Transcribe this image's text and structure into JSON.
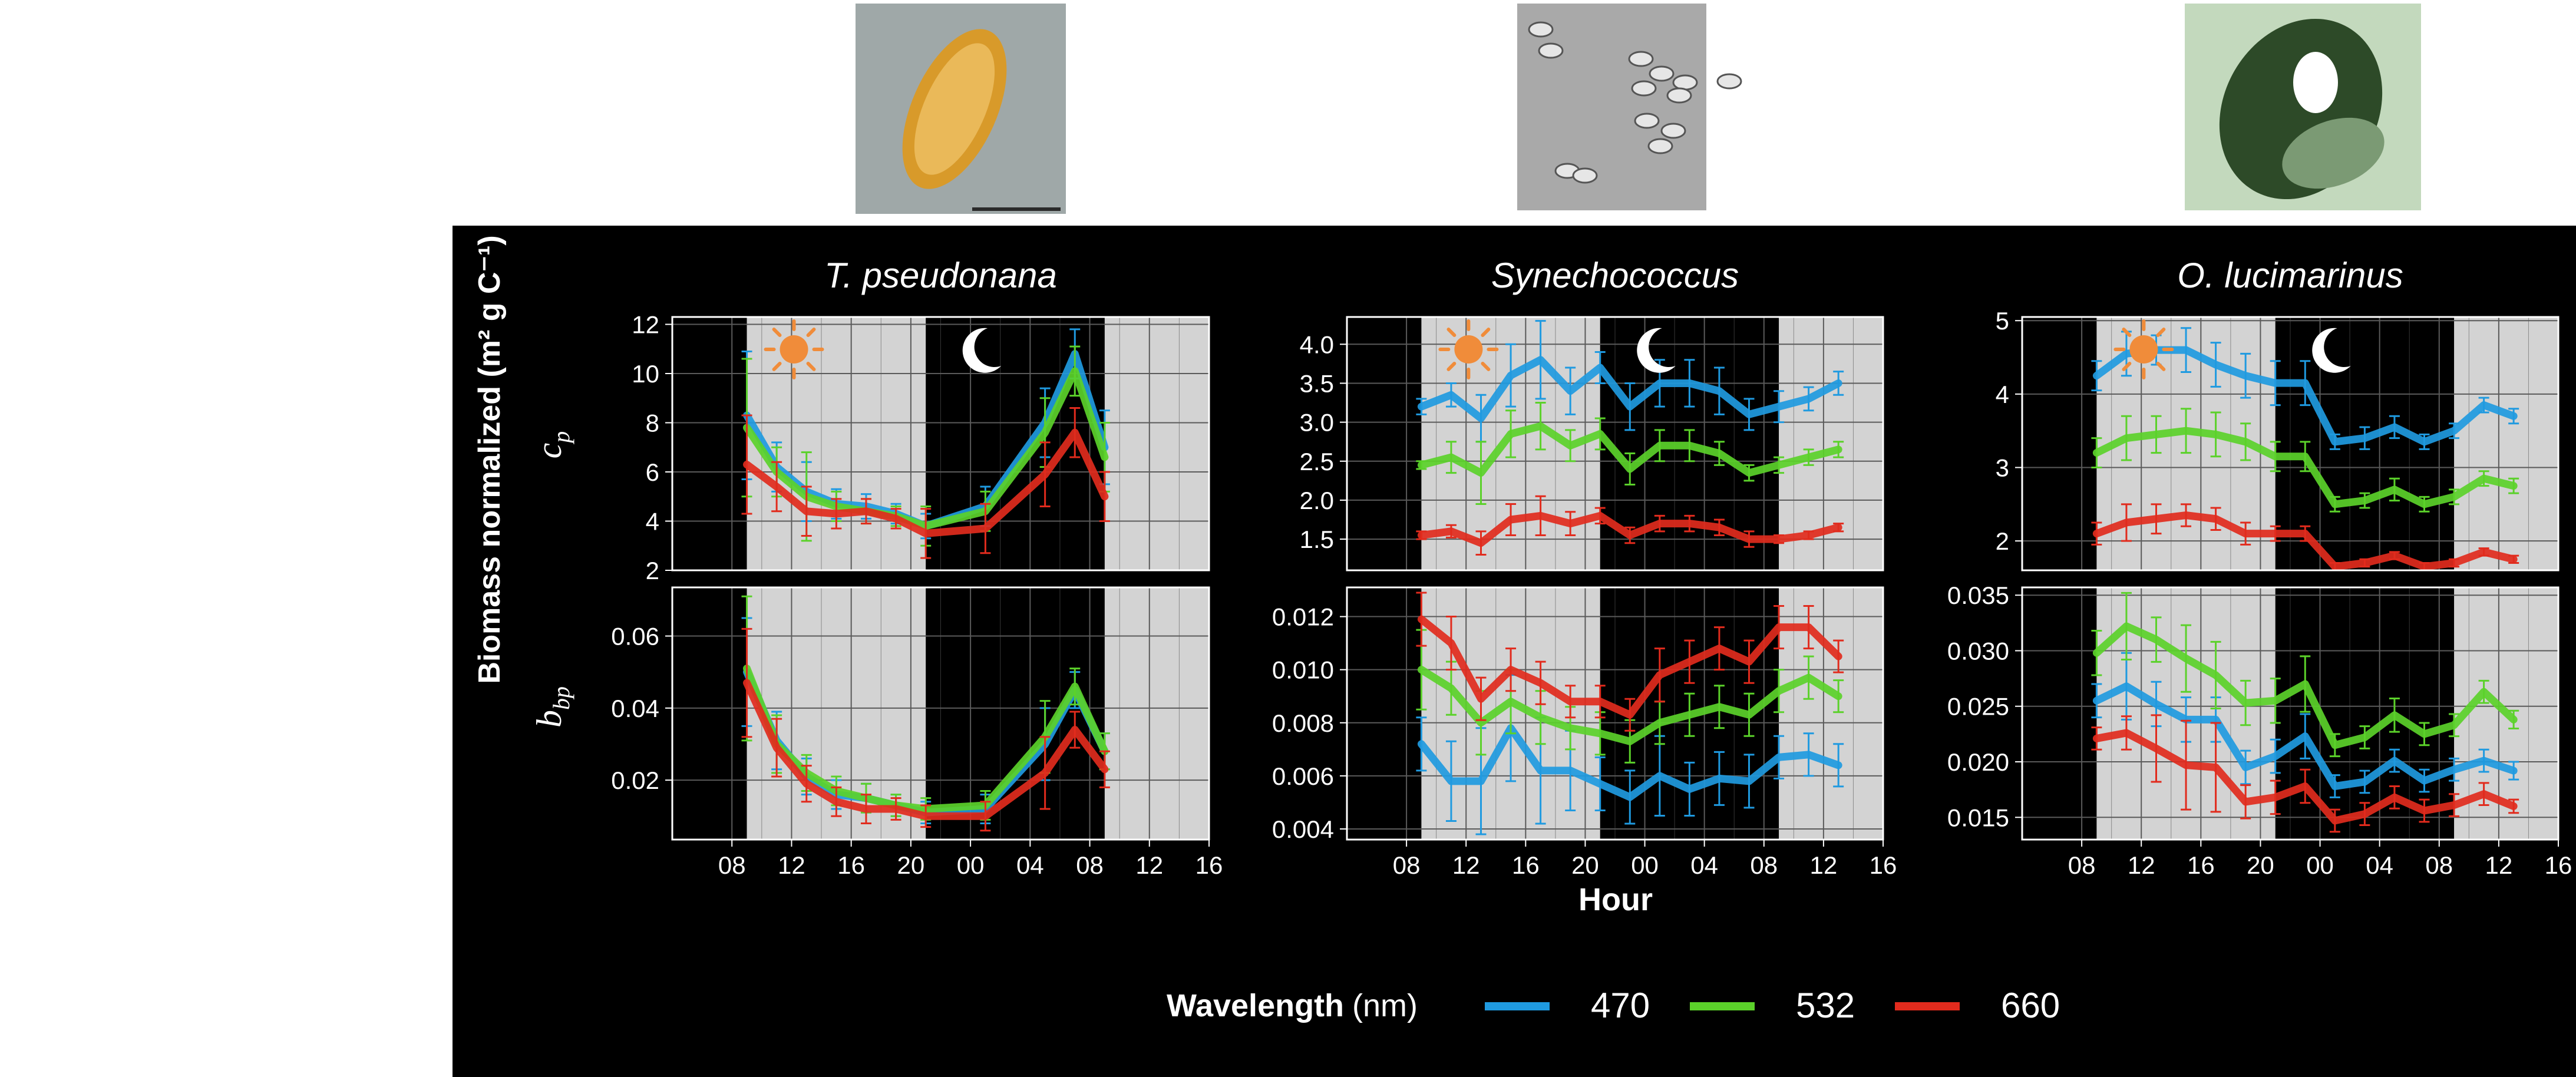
{
  "thumbnails": [
    {
      "organism": "T. pseudonana",
      "kind": "diatom-micrograph"
    },
    {
      "organism": "Synechococcus",
      "kind": "cyanobacteria-micrograph"
    },
    {
      "organism": "O. lucimarinus",
      "kind": "em-micrograph"
    }
  ],
  "figure": {
    "background": "#000000",
    "panel_bg": "#000000",
    "shade_color": "#d3d3d3",
    "grid_color": "#5a5a5a",
    "y_axis_title_main": "Biomass normalized ",
    "y_axis_title_units": "(m² g C⁻¹)",
    "row_labels": [
      {
        "base": "c",
        "sub": "p"
      },
      {
        "base": "b",
        "sub": "bp"
      }
    ],
    "x_axis_title": "Hour",
    "x_ticks": [
      "08",
      "12",
      "16",
      "20",
      "00",
      "04",
      "08",
      "12",
      "16"
    ],
    "legend": {
      "title": "Wavelength",
      "unit": "(nm)",
      "entries": [
        {
          "label": "470",
          "color": "#1f9ae0"
        },
        {
          "label": "532",
          "color": "#5bd12a"
        },
        {
          "label": "660",
          "color": "#e12b1d"
        }
      ]
    },
    "icons": {
      "day": "sun-icon",
      "night": "moon-icon"
    }
  },
  "chart_data": [
    {
      "type": "line",
      "title": "T. pseudonana",
      "row": "cp",
      "xlabel": "",
      "ylabel": "",
      "x": [
        9,
        11,
        13,
        15,
        17,
        19,
        21,
        25,
        29,
        31,
        33
      ],
      "xlim": [
        4,
        40
      ],
      "ylim": [
        2,
        12.3
      ],
      "yticks": [
        2,
        4,
        6,
        8,
        10,
        12
      ],
      "ytick_labels": [
        "2",
        "4",
        "6",
        "8",
        "10",
        "12"
      ],
      "light_periods": [
        [
          9,
          21
        ],
        [
          33,
          40
        ]
      ],
      "series": [
        {
          "name": "470",
          "values": [
            8.3,
            6.2,
            5.2,
            4.7,
            4.6,
            4.3,
            3.8,
            4.6,
            8.0,
            10.8,
            7.0
          ],
          "err": [
            2.6,
            1.0,
            1.2,
            0.6,
            0.5,
            0.4,
            0.5,
            0.8,
            1.4,
            1.0,
            1.5
          ]
        },
        {
          "name": "532",
          "values": [
            7.8,
            6.0,
            5.0,
            4.6,
            4.4,
            4.2,
            3.8,
            4.4,
            7.6,
            10.1,
            6.6
          ],
          "err": [
            2.8,
            1.0,
            1.8,
            0.6,
            0.5,
            0.4,
            0.8,
            0.8,
            1.4,
            1.0,
            1.4
          ]
        },
        {
          "name": "660",
          "values": [
            6.3,
            5.4,
            4.4,
            4.3,
            4.4,
            4.1,
            3.5,
            3.7,
            5.9,
            7.6,
            5.0
          ],
          "err": [
            2.0,
            1.0,
            1.0,
            0.6,
            0.5,
            0.4,
            1.0,
            1.0,
            1.3,
            1.0,
            1.0
          ]
        }
      ]
    },
    {
      "type": "line",
      "title": "T. pseudonana",
      "row": "bbp",
      "xlabel": "",
      "ylabel": "",
      "x": [
        9,
        11,
        13,
        15,
        17,
        19,
        21,
        25,
        29,
        31,
        33
      ],
      "xlim": [
        4,
        40
      ],
      "ylim": [
        0.0035,
        0.0735
      ],
      "yticks": [
        0.02,
        0.04,
        0.06
      ],
      "ytick_labels": [
        "0.02",
        "0.04",
        "0.06"
      ],
      "light_periods": [
        [
          9,
          21
        ],
        [
          33,
          40
        ]
      ],
      "series": [
        {
          "name": "470",
          "values": [
            0.05,
            0.031,
            0.021,
            0.016,
            0.015,
            0.013,
            0.011,
            0.012,
            0.03,
            0.045,
            0.028
          ],
          "err": [
            0.015,
            0.008,
            0.005,
            0.004,
            0.004,
            0.003,
            0.003,
            0.004,
            0.01,
            0.005,
            0.005
          ]
        },
        {
          "name": "532",
          "values": [
            0.051,
            0.03,
            0.022,
            0.017,
            0.015,
            0.013,
            0.012,
            0.013,
            0.032,
            0.046,
            0.028
          ],
          "err": [
            0.02,
            0.008,
            0.005,
            0.004,
            0.004,
            0.003,
            0.003,
            0.004,
            0.01,
            0.005,
            0.005
          ]
        },
        {
          "name": "660",
          "values": [
            0.047,
            0.029,
            0.019,
            0.014,
            0.012,
            0.012,
            0.01,
            0.01,
            0.022,
            0.034,
            0.023
          ],
          "err": [
            0.015,
            0.008,
            0.005,
            0.004,
            0.004,
            0.003,
            0.003,
            0.004,
            0.01,
            0.005,
            0.005
          ]
        }
      ]
    },
    {
      "type": "line",
      "title": "Synechococcus",
      "row": "cp",
      "xlabel": "",
      "ylabel": "",
      "x": [
        9,
        11,
        13,
        15,
        17,
        19,
        21,
        23,
        25,
        27,
        29,
        31,
        33,
        35,
        37
      ],
      "xlim": [
        4,
        40
      ],
      "ylim": [
        1.1,
        4.35
      ],
      "yticks": [
        1.5,
        2.0,
        2.5,
        3.0,
        3.5,
        4.0
      ],
      "ytick_labels": [
        "1.5",
        "2.0",
        "2.5",
        "3.0",
        "3.5",
        "4.0"
      ],
      "light_periods": [
        [
          9,
          21
        ],
        [
          33,
          40
        ]
      ],
      "series": [
        {
          "name": "470",
          "values": [
            3.2,
            3.35,
            3.05,
            3.6,
            3.8,
            3.4,
            3.7,
            3.2,
            3.5,
            3.5,
            3.4,
            3.1,
            3.2,
            3.3,
            3.5
          ],
          "err": [
            0.1,
            0.15,
            0.3,
            0.4,
            0.5,
            0.3,
            0.2,
            0.3,
            0.3,
            0.3,
            0.3,
            0.2,
            0.2,
            0.15,
            0.15
          ]
        },
        {
          "name": "532",
          "values": [
            2.45,
            2.55,
            2.35,
            2.85,
            2.95,
            2.7,
            2.85,
            2.4,
            2.7,
            2.7,
            2.6,
            2.35,
            2.45,
            2.55,
            2.65
          ],
          "err": [
            0.05,
            0.2,
            0.4,
            0.3,
            0.3,
            0.2,
            0.2,
            0.2,
            0.2,
            0.2,
            0.15,
            0.1,
            0.1,
            0.1,
            0.1
          ]
        },
        {
          "name": "660",
          "values": [
            1.55,
            1.6,
            1.45,
            1.75,
            1.8,
            1.7,
            1.8,
            1.55,
            1.7,
            1.7,
            1.65,
            1.5,
            1.5,
            1.55,
            1.65
          ],
          "err": [
            0.05,
            0.08,
            0.15,
            0.2,
            0.25,
            0.15,
            0.1,
            0.1,
            0.1,
            0.1,
            0.1,
            0.1,
            0.05,
            0.05,
            0.05
          ]
        }
      ]
    },
    {
      "type": "line",
      "title": "Synechococcus",
      "row": "bbp",
      "xlabel": "Hour",
      "ylabel": "",
      "x": [
        9,
        11,
        13,
        15,
        17,
        19,
        21,
        23,
        25,
        27,
        29,
        31,
        33,
        35,
        37
      ],
      "xlim": [
        4,
        40
      ],
      "ylim": [
        0.0036,
        0.0131
      ],
      "yticks": [
        0.004,
        0.006,
        0.008,
        0.01,
        0.012
      ],
      "ytick_labels": [
        "0.004",
        "0.006",
        "0.008",
        "0.010",
        "0.012"
      ],
      "light_periods": [
        [
          9,
          21
        ],
        [
          33,
          40
        ]
      ],
      "series": [
        {
          "name": "470",
          "values": [
            0.0072,
            0.0058,
            0.0058,
            0.0078,
            0.0062,
            0.0062,
            0.0057,
            0.0052,
            0.006,
            0.0055,
            0.0059,
            0.0058,
            0.0067,
            0.0068,
            0.0064
          ],
          "err": [
            0.001,
            0.0015,
            0.002,
            0.002,
            0.002,
            0.0015,
            0.001,
            0.001,
            0.0015,
            0.001,
            0.001,
            0.001,
            0.0008,
            0.0008,
            0.0008
          ]
        },
        {
          "name": "532",
          "values": [
            0.01,
            0.0093,
            0.008,
            0.0088,
            0.0082,
            0.0078,
            0.0076,
            0.0073,
            0.008,
            0.0083,
            0.0086,
            0.0083,
            0.0092,
            0.0097,
            0.009
          ],
          "err": [
            0.0015,
            0.001,
            0.0012,
            0.0012,
            0.001,
            0.0008,
            0.0008,
            0.0008,
            0.0008,
            0.0008,
            0.0008,
            0.0008,
            0.0008,
            0.0008,
            0.0006
          ]
        },
        {
          "name": "660",
          "values": [
            0.0119,
            0.011,
            0.0089,
            0.01,
            0.0095,
            0.0088,
            0.0088,
            0.0083,
            0.0098,
            0.0103,
            0.0108,
            0.0103,
            0.0116,
            0.0116,
            0.0105
          ],
          "err": [
            0.001,
            0.001,
            0.0008,
            0.0008,
            0.0008,
            0.0006,
            0.0006,
            0.0006,
            0.001,
            0.0008,
            0.0008,
            0.0008,
            0.0008,
            0.0008,
            0.0006
          ]
        }
      ]
    },
    {
      "type": "line",
      "title": "O. lucimarinus",
      "row": "cp",
      "xlabel": "",
      "ylabel": "",
      "x": [
        9,
        11,
        13,
        15,
        17,
        19,
        21,
        23,
        25,
        27,
        29,
        31,
        33,
        35,
        37
      ],
      "xlim": [
        4,
        40
      ],
      "ylim": [
        1.6,
        5.05
      ],
      "yticks": [
        2,
        3,
        4,
        5
      ],
      "ytick_labels": [
        "2",
        "3",
        "4",
        "5"
      ],
      "light_periods": [
        [
          9,
          21
        ],
        [
          33,
          40
        ]
      ],
      "series": [
        {
          "name": "470",
          "values": [
            4.25,
            4.55,
            4.6,
            4.6,
            4.4,
            4.25,
            4.15,
            4.15,
            3.35,
            3.4,
            3.55,
            3.35,
            3.5,
            3.85,
            3.7
          ],
          "err": [
            0.2,
            0.3,
            0.2,
            0.3,
            0.3,
            0.3,
            0.3,
            0.3,
            0.1,
            0.15,
            0.15,
            0.1,
            0.1,
            0.1,
            0.1
          ]
        },
        {
          "name": "532",
          "values": [
            3.2,
            3.4,
            3.45,
            3.5,
            3.45,
            3.35,
            3.15,
            3.15,
            2.5,
            2.55,
            2.7,
            2.5,
            2.6,
            2.85,
            2.75
          ],
          "err": [
            0.2,
            0.3,
            0.25,
            0.3,
            0.3,
            0.25,
            0.2,
            0.2,
            0.1,
            0.1,
            0.15,
            0.1,
            0.1,
            0.1,
            0.1
          ]
        },
        {
          "name": "660",
          "values": [
            2.1,
            2.25,
            2.3,
            2.35,
            2.3,
            2.1,
            2.1,
            2.1,
            1.65,
            1.7,
            1.8,
            1.65,
            1.7,
            1.85,
            1.75
          ],
          "err": [
            0.15,
            0.25,
            0.2,
            0.15,
            0.15,
            0.15,
            0.1,
            0.1,
            0.05,
            0.05,
            0.05,
            0.05,
            0.05,
            0.05,
            0.05
          ]
        }
      ]
    },
    {
      "type": "line",
      "title": "O. lucimarinus",
      "row": "bbp",
      "xlabel": "",
      "ylabel": "",
      "x": [
        9,
        11,
        13,
        15,
        17,
        19,
        21,
        23,
        25,
        27,
        29,
        31,
        33,
        35,
        37
      ],
      "xlim": [
        4,
        40
      ],
      "ylim": [
        0.013,
        0.0357
      ],
      "yticks": [
        0.015,
        0.02,
        0.025,
        0.03,
        0.035
      ],
      "ytick_labels": [
        "0.015",
        "0.020",
        "0.025",
        "0.030",
        "0.035"
      ],
      "light_periods": [
        [
          9,
          21
        ],
        [
          33,
          40
        ]
      ],
      "series": [
        {
          "name": "470",
          "values": [
            0.0255,
            0.0268,
            0.0252,
            0.0238,
            0.0238,
            0.0195,
            0.0205,
            0.0223,
            0.0178,
            0.0182,
            0.0201,
            0.0183,
            0.0193,
            0.0201,
            0.0192
          ],
          "err": [
            0.0015,
            0.003,
            0.002,
            0.002,
            0.002,
            0.0015,
            0.0015,
            0.002,
            0.001,
            0.001,
            0.001,
            0.001,
            0.001,
            0.001,
            0.0008
          ]
        },
        {
          "name": "532",
          "values": [
            0.0298,
            0.0322,
            0.031,
            0.0293,
            0.0278,
            0.0253,
            0.0255,
            0.027,
            0.0215,
            0.0222,
            0.0242,
            0.0225,
            0.0233,
            0.0263,
            0.0238
          ],
          "err": [
            0.002,
            0.003,
            0.002,
            0.003,
            0.003,
            0.002,
            0.002,
            0.0025,
            0.001,
            0.001,
            0.0015,
            0.001,
            0.001,
            0.001,
            0.0008
          ]
        },
        {
          "name": "660",
          "values": [
            0.0221,
            0.0226,
            0.0212,
            0.0197,
            0.0195,
            0.0164,
            0.0168,
            0.0178,
            0.0147,
            0.0153,
            0.0168,
            0.0156,
            0.0161,
            0.0171,
            0.016
          ],
          "err": [
            0.001,
            0.0015,
            0.003,
            0.004,
            0.004,
            0.0015,
            0.0015,
            0.0015,
            0.001,
            0.001,
            0.001,
            0.001,
            0.001,
            0.001,
            0.0006
          ]
        }
      ]
    }
  ]
}
